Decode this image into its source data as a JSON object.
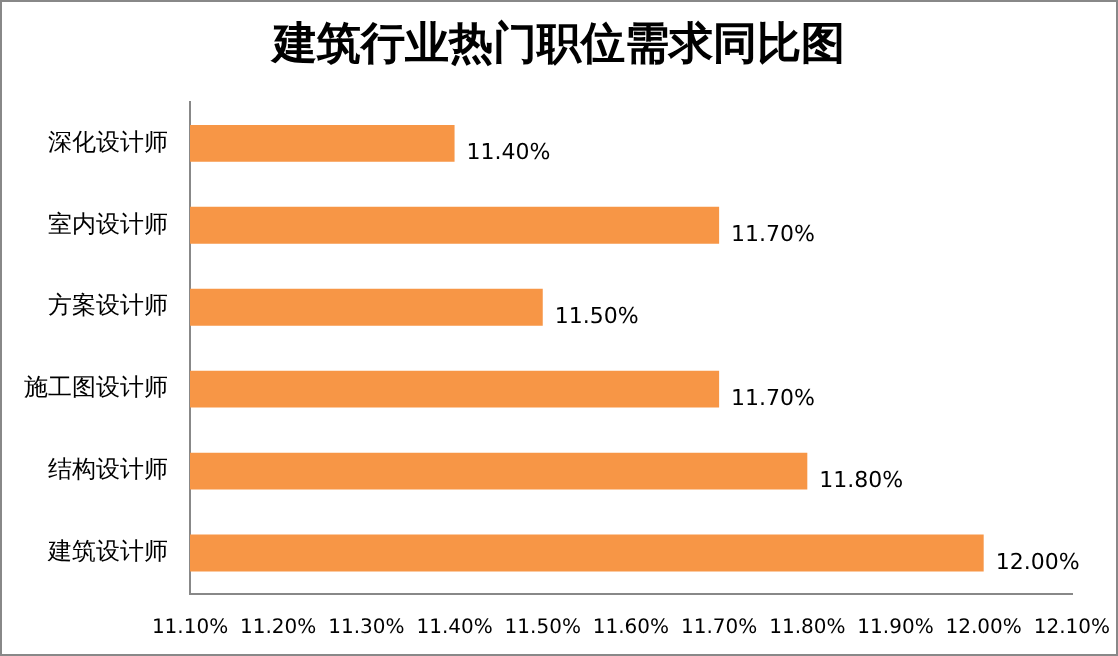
{
  "chart_data": {
    "type": "bar",
    "orientation": "horizontal",
    "title": "建筑行业热门职位需求同比图",
    "categories": [
      "深化设计师",
      "室内设计师",
      "方案设计师",
      "施工图设计师",
      "结构设计师",
      "建筑设计师"
    ],
    "values": [
      11.4,
      11.7,
      11.5,
      11.7,
      11.8,
      12.0
    ],
    "value_labels": [
      "11.40%",
      "11.70%",
      "11.50%",
      "11.70%",
      "11.80%",
      "12.00%"
    ],
    "color": "#f79646",
    "xlim": [
      11.1,
      12.1
    ],
    "xticks": [
      {
        "value": 11.1,
        "label": "11.10%"
      },
      {
        "value": 11.2,
        "label": "11.20%"
      },
      {
        "value": 11.3,
        "label": "11.30%"
      },
      {
        "value": 11.4,
        "label": "11.40%"
      },
      {
        "value": 11.5,
        "label": "11.50%"
      },
      {
        "value": 11.6,
        "label": "11.60%"
      },
      {
        "value": 11.7,
        "label": "11.70%"
      },
      {
        "value": 11.8,
        "label": "11.80%"
      },
      {
        "value": 11.9,
        "label": "11.90%"
      },
      {
        "value": 12.0,
        "label": "12.00%"
      },
      {
        "value": 12.1,
        "label": "12.10%"
      }
    ],
    "legend": false
  }
}
